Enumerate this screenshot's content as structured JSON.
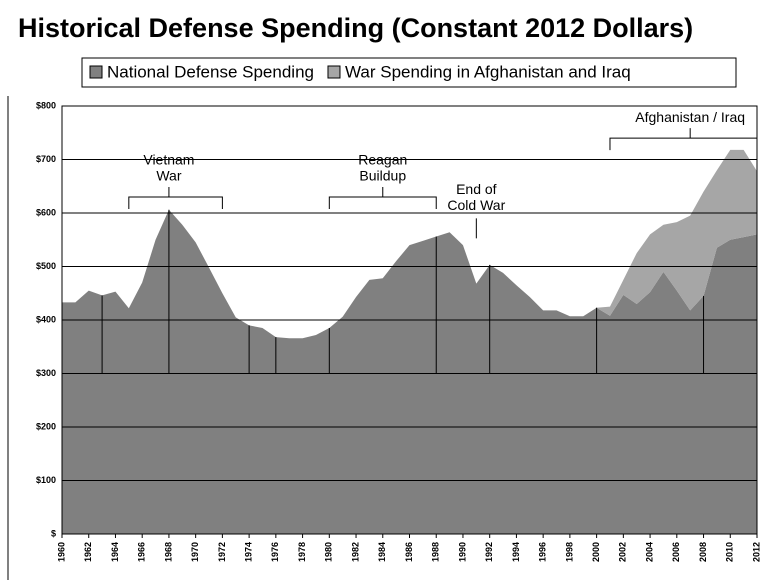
{
  "chart_data": {
    "type": "stacked_area",
    "title": "Historical Defense Spending (Constant 2012 Dollars)",
    "x": [
      1960,
      1961,
      1962,
      1963,
      1964,
      1965,
      1966,
      1967,
      1968,
      1969,
      1970,
      1971,
      1972,
      1973,
      1974,
      1975,
      1976,
      1977,
      1978,
      1979,
      1980,
      1981,
      1982,
      1983,
      1984,
      1985,
      1986,
      1987,
      1988,
      1989,
      1990,
      1991,
      1992,
      1993,
      1994,
      1995,
      1996,
      1997,
      1998,
      1999,
      2000,
      2001,
      2002,
      2003,
      2004,
      2005,
      2006,
      2007,
      2008,
      2009,
      2010,
      2011,
      2012
    ],
    "series": [
      {
        "name": "National Defense Spending",
        "color": "#808080",
        "values": [
          433,
          433,
          455,
          446,
          453,
          422,
          470,
          550,
          606,
          578,
          545,
          498,
          450,
          405,
          390,
          385,
          368,
          366,
          366,
          372,
          385,
          406,
          443,
          475,
          478,
          510,
          540,
          548,
          556,
          564,
          540,
          468,
          503,
          488,
          465,
          443,
          418,
          418,
          407,
          407,
          423,
          408,
          447,
          430,
          452,
          490,
          455,
          418,
          445,
          535,
          550,
          555,
          560
        ]
      },
      {
        "name": "War Spending in Afghanistan and Iraq",
        "color": "#a6a6a6",
        "values": [
          0,
          0,
          0,
          0,
          0,
          0,
          0,
          0,
          0,
          0,
          0,
          0,
          0,
          0,
          0,
          0,
          0,
          0,
          0,
          0,
          0,
          0,
          0,
          0,
          0,
          0,
          0,
          0,
          0,
          0,
          0,
          0,
          0,
          0,
          0,
          0,
          0,
          0,
          0,
          0,
          0,
          17,
          28,
          95,
          108,
          88,
          128,
          177,
          195,
          145,
          168,
          163,
          118
        ]
      }
    ],
    "xlim": [
      1960,
      2012
    ],
    "xticks": [
      1960,
      1962,
      1964,
      1966,
      1968,
      1970,
      1972,
      1974,
      1976,
      1978,
      1980,
      1982,
      1984,
      1986,
      1988,
      1990,
      1992,
      1994,
      1996,
      1998,
      2000,
      2002,
      2004,
      2006,
      2008,
      2010,
      2012
    ],
    "ylim": [
      0,
      800
    ],
    "yticks": [
      {
        "value": 0,
        "label": "$"
      },
      {
        "value": 100,
        "label": "$100"
      },
      {
        "value": 200,
        "label": "$200"
      },
      {
        "value": 300,
        "label": "$300"
      },
      {
        "value": 400,
        "label": "$400"
      },
      {
        "value": 500,
        "label": "$500"
      },
      {
        "value": 600,
        "label": "$600"
      },
      {
        "value": 700,
        "label": "$700"
      },
      {
        "value": 800,
        "label": "$800"
      }
    ],
    "grid": true,
    "term_changes": [
      1963,
      1968,
      1974,
      1976,
      1980,
      1988,
      1992,
      2000,
      2008
    ],
    "annotations": [
      {
        "text": [
          "Vietnam",
          "War"
        ],
        "span": [
          1965,
          1972
        ],
        "at": 1968,
        "y": 630
      },
      {
        "text": [
          "Reagan",
          "Buildup"
        ],
        "span": [
          1980,
          1988
        ],
        "at": 1984,
        "y": 630
      },
      {
        "text": [
          "End of",
          "Cold War"
        ],
        "span": [
          1991,
          1991
        ],
        "at": 1991,
        "y": 590
      },
      {
        "text": [
          "Afghanistan / Iraq"
        ],
        "span": [
          2001,
          2012
        ],
        "at": 2007,
        "y": 740
      }
    ]
  }
}
